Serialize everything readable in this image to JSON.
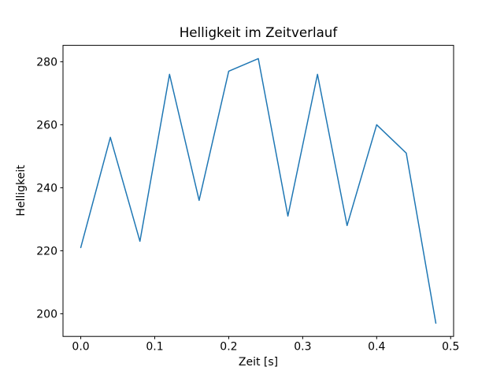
{
  "figure": {
    "background": "#ffffff",
    "text_color": "#000000",
    "spine_color": "#000000"
  },
  "chart_data": {
    "type": "line",
    "title": "Helligkeit im Zeitverlauf",
    "xlabel": "Zeit [s]",
    "ylabel": "Helligkeit",
    "x": [
      0.0,
      0.04,
      0.08,
      0.12,
      0.16,
      0.2,
      0.24,
      0.28,
      0.32,
      0.36,
      0.4,
      0.44,
      0.48
    ],
    "y": [
      221,
      256,
      223,
      276,
      236,
      277,
      281,
      231,
      276,
      228,
      260,
      251,
      197
    ],
    "series": [
      {
        "name": "Helligkeit",
        "values": [
          221,
          256,
          223,
          276,
          236,
          277,
          281,
          231,
          276,
          228,
          260,
          251,
          197
        ]
      }
    ],
    "xlim": [
      -0.024,
      0.504
    ],
    "ylim": [
      192.8,
      285.2
    ],
    "xticks": {
      "values": [
        0.0,
        0.1,
        0.2,
        0.3,
        0.4,
        0.5
      ],
      "labels": [
        "0.0",
        "0.1",
        "0.2",
        "0.3",
        "0.4",
        "0.5"
      ]
    },
    "yticks": {
      "values": [
        200,
        220,
        240,
        260,
        280
      ],
      "labels": [
        "200",
        "220",
        "240",
        "260",
        "280"
      ]
    },
    "line_color": "#1f77b4",
    "grid": false,
    "legend": "none"
  }
}
